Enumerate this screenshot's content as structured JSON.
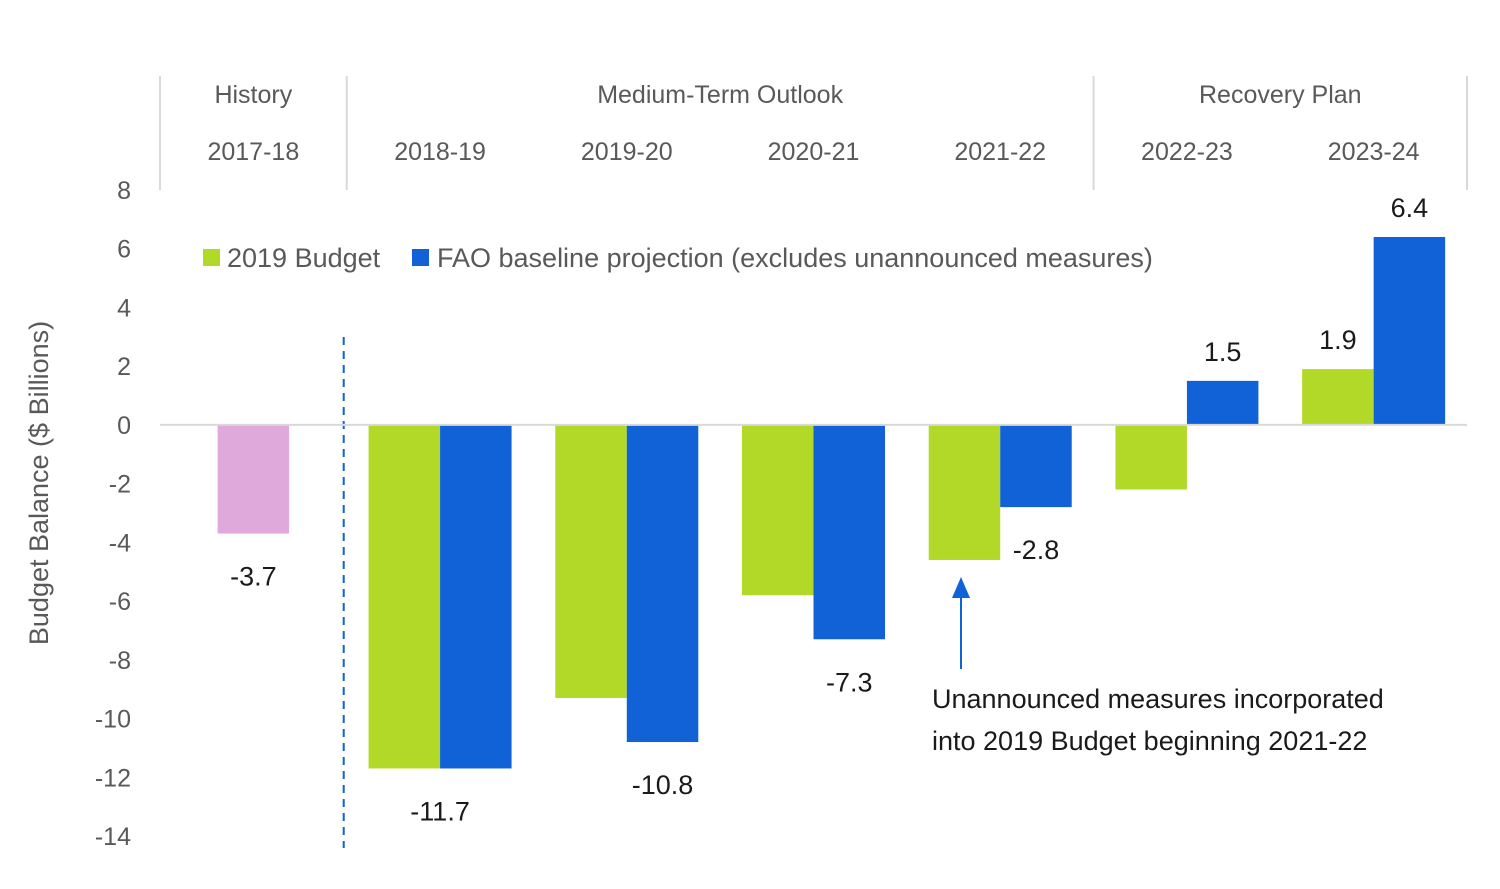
{
  "chart_data": {
    "type": "bar",
    "categories": [
      "2017-18",
      "2018-19",
      "2019-20",
      "2020-21",
      "2021-22",
      "2022-23",
      "2023-24"
    ],
    "section_headers": [
      {
        "label": "History",
        "from": 0,
        "to": 0
      },
      {
        "label": "Medium-Term Outlook",
        "from": 1,
        "to": 4
      },
      {
        "label": "Recovery Plan",
        "from": 5,
        "to": 6
      }
    ],
    "series": [
      {
        "name": "2019 Budget",
        "color": "#b3d928",
        "values": [
          null,
          -11.7,
          -9.3,
          -5.8,
          -4.6,
          -2.2,
          1.9
        ]
      },
      {
        "name": "FAO baseline projection (excludes unannounced measures)",
        "color": "#1162d6",
        "values": [
          null,
          -11.7,
          -10.8,
          -7.3,
          -2.8,
          1.5,
          6.4
        ]
      }
    ],
    "history": {
      "category": "2017-18",
      "value": -3.7,
      "color": "#dfa9db"
    },
    "data_labels": [
      {
        "text": "-3.7",
        "category": 0,
        "value": -3.7,
        "series": "history"
      },
      {
        "text": "-11.7",
        "category": 1,
        "value": -11.7,
        "series": "center"
      },
      {
        "text": "-10.8",
        "category": 2,
        "value": -10.8,
        "series": 1
      },
      {
        "text": "-7.3",
        "category": 3,
        "value": -7.3,
        "series": 1
      },
      {
        "text": "-2.8",
        "category": 4,
        "value": -2.8,
        "series": 1
      },
      {
        "text": "1.5",
        "category": 5,
        "value": 1.5,
        "series": 1
      },
      {
        "text": "1.9",
        "category": 6,
        "value": 1.9,
        "series": 0
      },
      {
        "text": "6.4",
        "category": 6,
        "value": 6.4,
        "series": 1
      }
    ],
    "ylabel": "Budget Balance ($ Billions)",
    "xlabel": "",
    "ylim": [
      -14,
      8
    ],
    "yticks": [
      8,
      6,
      4,
      2,
      0,
      -2,
      -4,
      -6,
      -8,
      -10,
      -12,
      -14
    ],
    "grid": false,
    "legend_position": "top-left",
    "annotation": {
      "lines": [
        "Unannounced measures incorporated",
        "into 2019 Budget beginning 2021-22"
      ],
      "arrow_target": {
        "category": 4,
        "value": -4.6
      },
      "arrow_color": "#1162d6"
    },
    "divider_color": "#1162d6"
  }
}
